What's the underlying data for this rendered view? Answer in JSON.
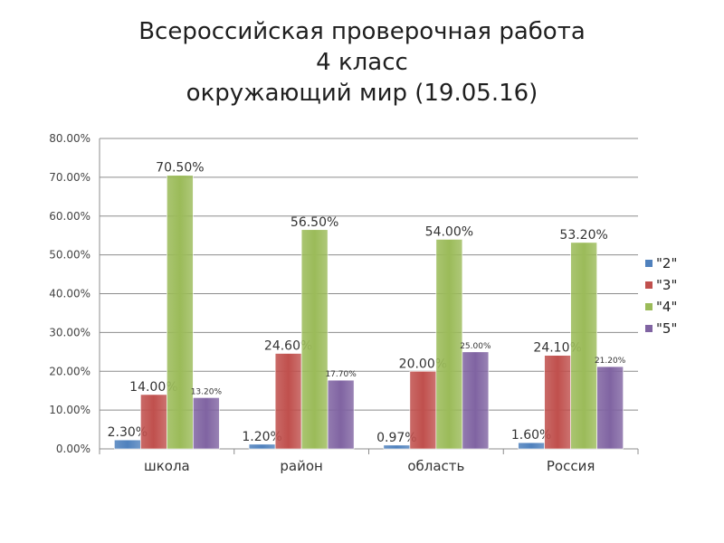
{
  "title": {
    "line1": "Всероссийская проверочная работа",
    "line2": "4 класс",
    "line3": "окружающий мир (19.05.16)"
  },
  "chart_data": {
    "type": "bar",
    "categories": [
      "школа",
      "район",
      "область",
      "Россия"
    ],
    "series": [
      {
        "name": "\"2\"",
        "color": "#4f81bd",
        "values": [
          2.3,
          1.2,
          0.97,
          1.6
        ]
      },
      {
        "name": "\"3\"",
        "color": "#c0504d",
        "values": [
          14.0,
          24.6,
          20.0,
          24.1
        ]
      },
      {
        "name": "\"4\"",
        "color": "#9bbb59",
        "values": [
          70.5,
          56.5,
          54.0,
          53.2
        ]
      },
      {
        "name": "\"5\"",
        "color": "#8064a2",
        "values": [
          13.2,
          17.7,
          25.0,
          21.2
        ]
      }
    ],
    "data_labels": [
      [
        "2.30%",
        "14.00%",
        "70.50%",
        "13.20%"
      ],
      [
        "1.20%",
        "24.60%",
        "56.50%",
        "17.70%"
      ],
      [
        "0.97%",
        "20.00%",
        "54.00%",
        "25.00%"
      ],
      [
        "1.60%",
        "24.10%",
        "53.20%",
        "21.20%"
      ]
    ],
    "y_ticks": [
      "0.00%",
      "10.00%",
      "20.00%",
      "30.00%",
      "40.00%",
      "50.00%",
      "60.00%",
      "70.00%",
      "80.00%"
    ],
    "ylim": [
      0,
      80
    ],
    "grid": true,
    "legend": "right"
  }
}
